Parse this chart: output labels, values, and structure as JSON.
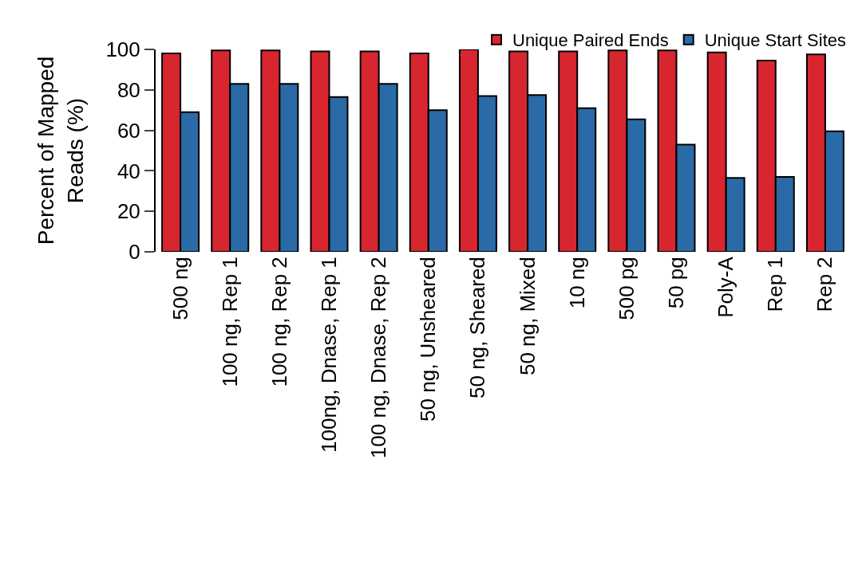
{
  "chart_data": {
    "type": "bar",
    "ylabel": "Percent of Mapped\nReads (%)",
    "categories": [
      "500 ng",
      "100 ng, Rep 1",
      "100 ng, Rep 2",
      "100ng, Dnase, Rep 1",
      "100 ng, Dnase, Rep 2",
      "50 ng, Unsheared",
      "50 ng, Sheared",
      "50 ng, Mixed",
      "10 ng",
      "500 pg",
      "50 pg",
      "Poly-A",
      "Rep 1",
      "Rep 2"
    ],
    "series": [
      {
        "name": "Unique Paired Ends",
        "color": "#d7262f",
        "values": [
          98,
          99.5,
          99.5,
          99,
          99,
          98,
          100,
          99,
          99,
          99.5,
          99.5,
          98.5,
          94.5,
          97.5
        ]
      },
      {
        "name": "Unique Start Sites",
        "color": "#2a6aa6",
        "values": [
          69,
          83,
          83,
          76.5,
          83,
          70,
          77,
          77.5,
          71,
          65.5,
          53,
          36.5,
          37,
          59.5
        ]
      }
    ],
    "ylim": [
      0,
      100
    ],
    "yticks": [
      0,
      20,
      40,
      60,
      80,
      100
    ],
    "grid": false,
    "legend": "top right"
  }
}
